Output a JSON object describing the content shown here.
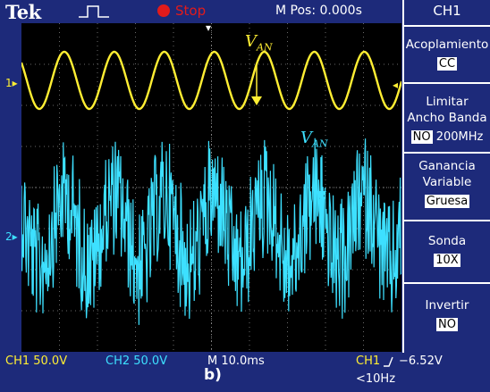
{
  "top": {
    "brand": "Tek",
    "status": "Stop",
    "position": "M Pos: 0.000s"
  },
  "menu": {
    "title": "CH1",
    "coupling_label": "Acoplamiento",
    "coupling_value": "CC",
    "bw_label_1": "Limitar",
    "bw_label_2": "Ancho Banda",
    "bw_value": "NO",
    "bw_freq": "200MHz",
    "gain_label_1": "Ganancia",
    "gain_label_2": "Variable",
    "gain_value": "Gruesa",
    "probe_label": "Sonda",
    "probe_value": "10X",
    "invert_label": "Invertir",
    "invert_value": "NO"
  },
  "bottom": {
    "ch1": "CH1  50.0V",
    "ch2": "CH2  50.0V",
    "timebase": "M 10.0ms",
    "trigger": "CH1",
    "trigger_level": "−6.52V",
    "freq": "<10Hz",
    "figure_label": "b)"
  },
  "annotations": {
    "van_letter": "V",
    "van_sub": "AN",
    "van2_letter": "V",
    "van2_sub": "AN"
  },
  "markers": {
    "ch1": "1",
    "ch2": "2"
  },
  "colors": {
    "background": "#1d2a7a",
    "screen": "#000000",
    "ch1": "#ffee33",
    "ch2": "#3de0ff",
    "stop": "#e21b1b"
  },
  "waveforms": {
    "ch1_cycles": 7.6,
    "ch2_fundamental_cycles": 7.6
  }
}
